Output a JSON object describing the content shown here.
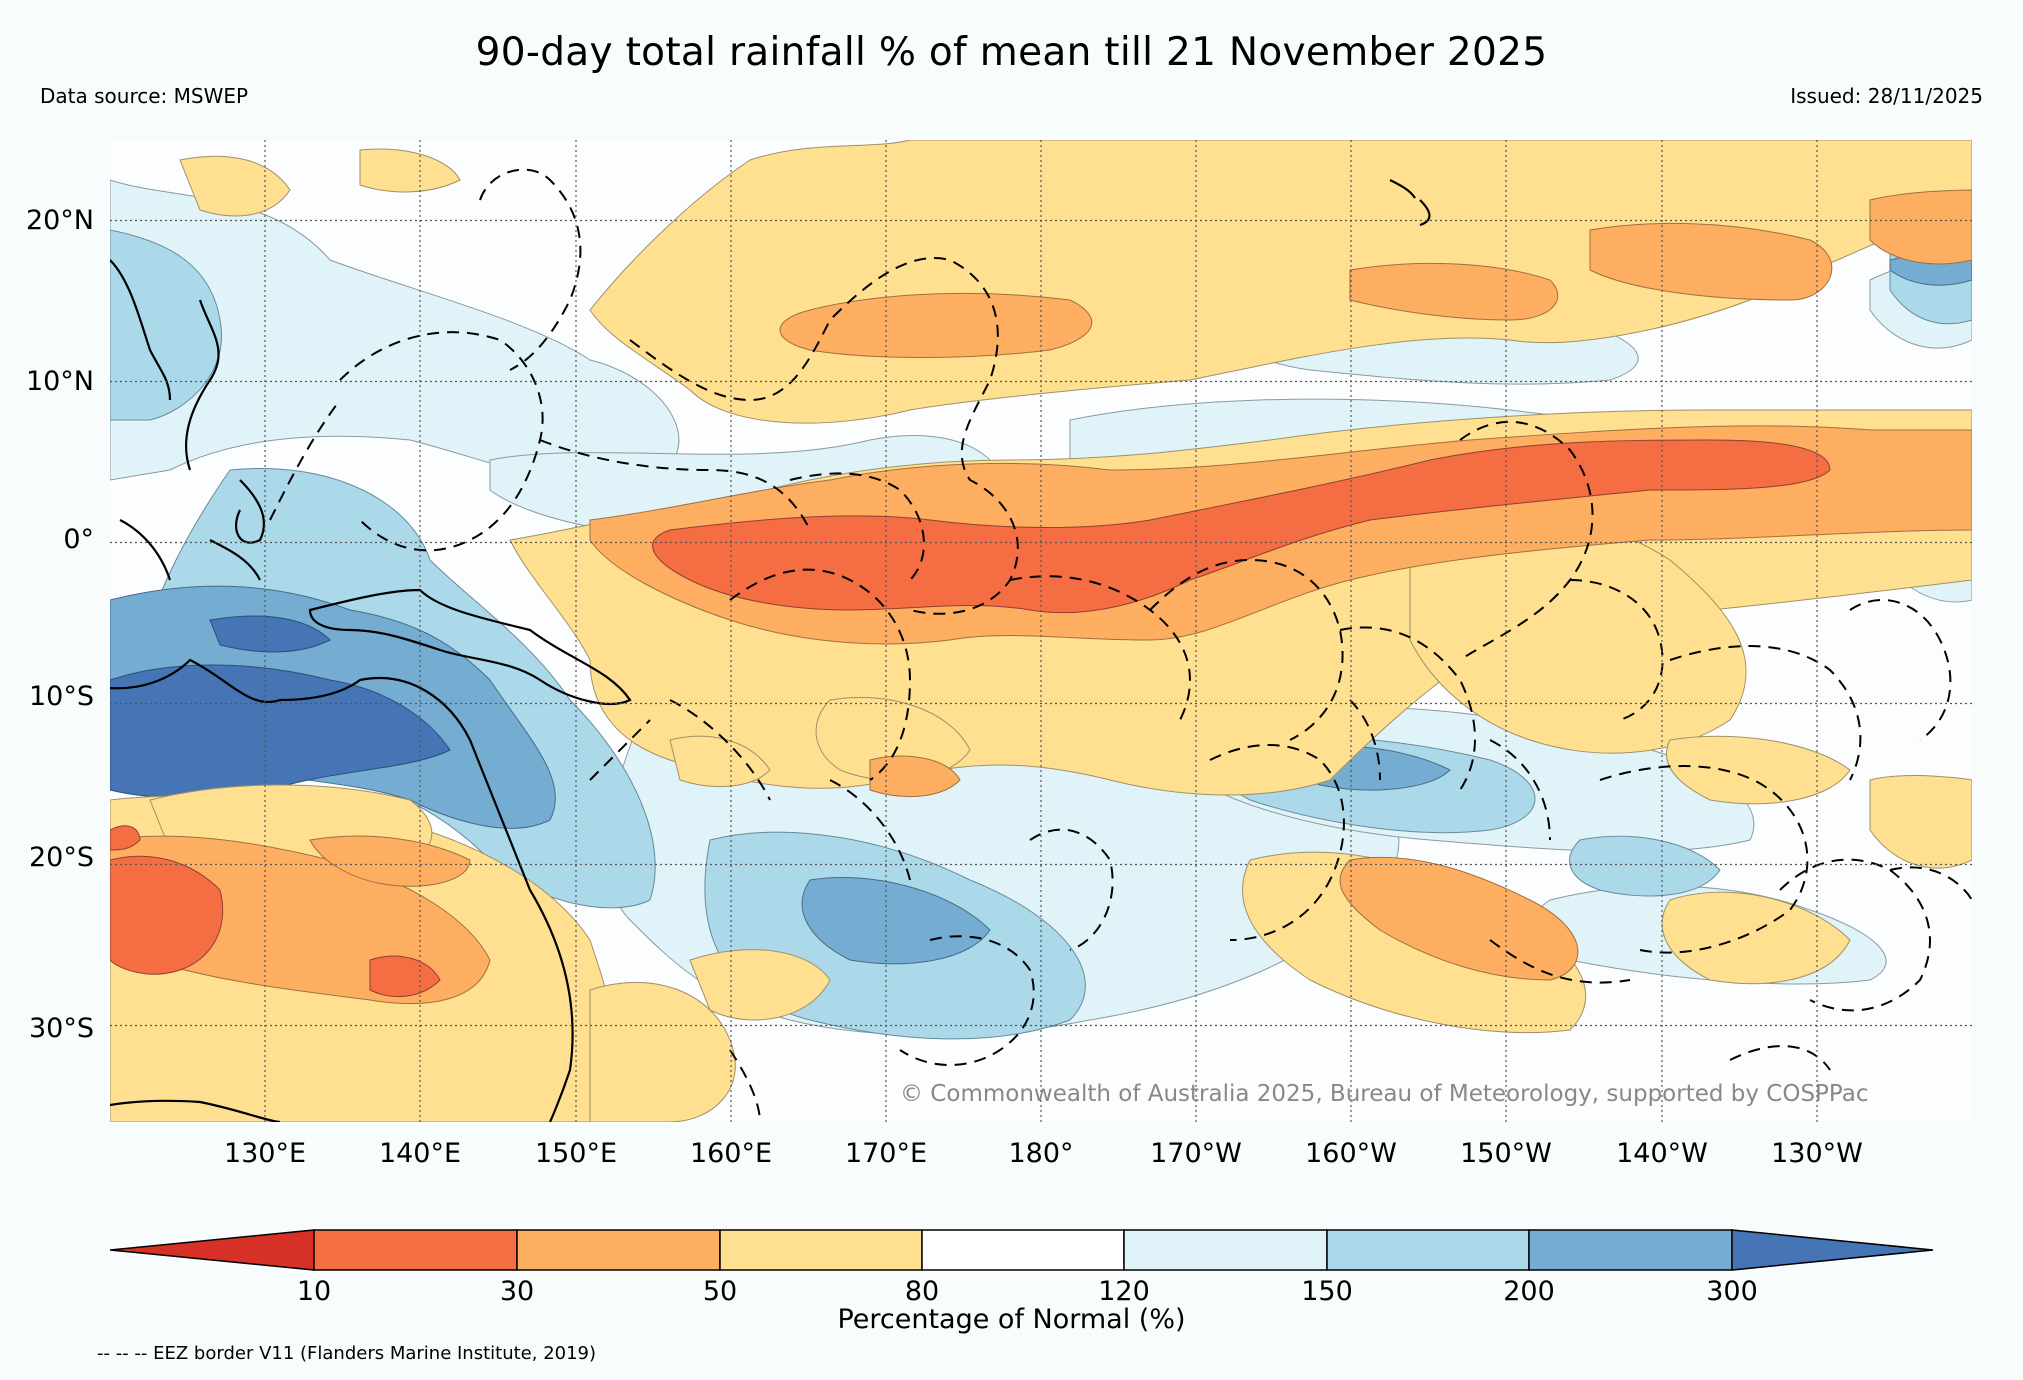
{
  "title": "90-day total rainfall % of mean till 21 November 2025",
  "data_source": "Data source: MSWEP",
  "issued": "Issued: 28/11/2025",
  "copyright": "© Commonwealth of Australia 2025, Bureau of Meteorology, supported by COSPPac",
  "footnote": "-- -- -- EEZ border V11 (Flanders Marine Institute, 2019)",
  "map": {
    "lat_labels": [
      "20°N",
      "10°N",
      "0°",
      "10°S",
      "20°S",
      "30°S"
    ],
    "lat_values": [
      20,
      10,
      0,
      -10,
      -20,
      -30
    ],
    "lon_labels": [
      "130°E",
      "140°E",
      "150°E",
      "160°E",
      "170°E",
      "180°",
      "170°W",
      "160°W",
      "150°W",
      "140°W",
      "130°W"
    ],
    "lon_values": [
      130,
      140,
      150,
      160,
      170,
      180,
      190,
      200,
      210,
      220,
      230
    ],
    "lon_range": [
      120,
      240
    ],
    "lat_range": [
      -36,
      25
    ]
  },
  "colorbar": {
    "title": "Percentage of Normal (%)",
    "boundaries": [
      "10",
      "30",
      "50",
      "80",
      "120",
      "150",
      "200",
      "300"
    ],
    "colors": [
      "#d73027",
      "#f46d43",
      "#fdae61",
      "#fee090",
      "#ffffff",
      "#e0f3f8",
      "#abd9e9",
      "#74add1",
      "#4575b4"
    ],
    "extend": "both"
  }
}
